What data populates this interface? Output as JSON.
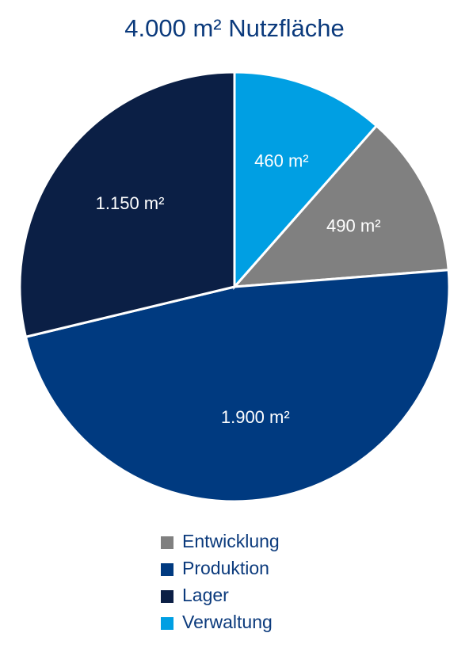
{
  "chart_data": {
    "type": "pie",
    "title": "4.000 m² Nutzfläche",
    "categories": [
      "Entwicklung",
      "Produktion",
      "Lager",
      "Verwaltung"
    ],
    "values": [
      490,
      1900,
      1150,
      460
    ],
    "value_labels": [
      "490 m²",
      "1.900 m²",
      "1.150 m²",
      "460 m²"
    ],
    "colors": [
      "#808080",
      "#003a80",
      "#0b1f45",
      "#009fe3"
    ]
  }
}
